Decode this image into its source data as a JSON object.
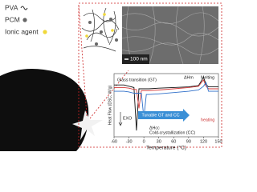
{
  "legend_items": [
    "PVA",
    "PCM",
    "Ionic agent"
  ],
  "sem_scale": "100 nm",
  "chart_data": {
    "type": "line",
    "x_label": "Temperature (°C)",
    "y_label": "Heat Flow (DSC, W/g)",
    "x": [
      -60,
      -40,
      -30,
      -20,
      -15,
      -10,
      -5,
      0,
      5,
      10,
      30,
      60,
      90,
      110,
      120,
      125,
      130,
      140,
      150
    ],
    "series": [
      {
        "color": "#111111",
        "values": [
          8.2,
          8.2,
          8.0,
          7.8,
          1.0,
          7.6,
          7.6,
          7.6,
          7.6,
          7.6,
          7.7,
          7.8,
          7.9,
          8.1,
          9.4,
          8.3,
          7.9,
          7.9,
          7.9
        ]
      },
      {
        "color": "#d33a3a",
        "values": [
          7.8,
          7.8,
          7.7,
          7.5,
          7.5,
          4.5,
          7.3,
          7.3,
          7.3,
          7.3,
          7.4,
          7.6,
          7.8,
          8.0,
          9.0,
          8.0,
          7.6,
          7.6,
          7.6
        ]
      },
      {
        "color": "#2f6fc9",
        "values": [
          7.2,
          7.2,
          7.1,
          6.9,
          6.9,
          6.9,
          6.9,
          3.0,
          6.7,
          6.7,
          6.8,
          7.0,
          7.2,
          7.4,
          8.0,
          8.6,
          7.2,
          7.2,
          7.2
        ]
      }
    ],
    "xlim": [
      -60,
      150
    ],
    "xticks": [
      -60,
      -30,
      0,
      30,
      60,
      90,
      120,
      150
    ],
    "ylim": [
      0,
      10
    ],
    "annotations": [
      "Glass transition (GT)",
      "ΔHm",
      "Melting",
      "heating",
      "EXO",
      "ΔHcc",
      "Cold-crystallization (CC)",
      "Tunable GT and CC"
    ]
  }
}
